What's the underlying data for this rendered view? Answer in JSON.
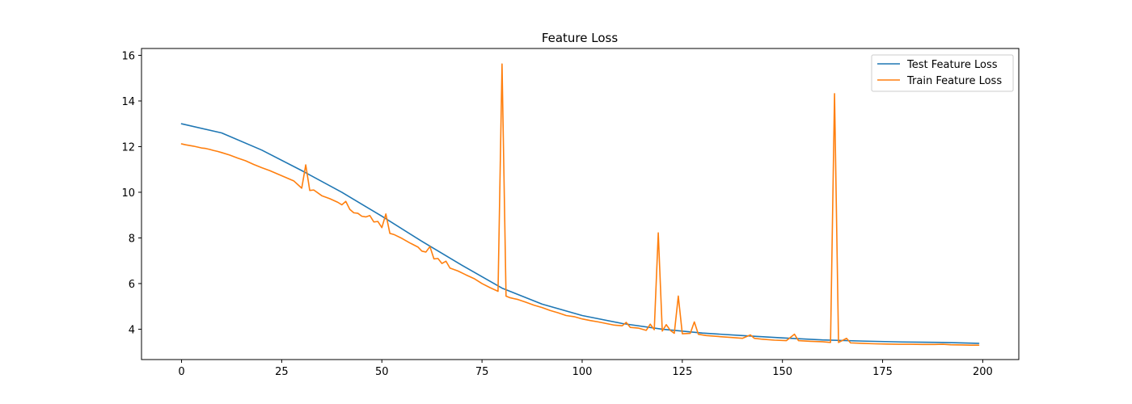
{
  "chart_data": {
    "type": "line",
    "title": "Feature Loss",
    "xlabel": "",
    "ylabel": "",
    "xlim": [
      -10,
      209
    ],
    "ylim": [
      2.67,
      16.3
    ],
    "x_ticks": [
      0,
      25,
      50,
      75,
      100,
      125,
      150,
      175,
      200
    ],
    "y_ticks": [
      4,
      6,
      8,
      10,
      12,
      14,
      16
    ],
    "grid": false,
    "legend_position": "top-right",
    "series": [
      {
        "name": "Test Feature Loss",
        "color": "#1f77b4",
        "points": [
          [
            0,
            13.0
          ],
          [
            10,
            12.6
          ],
          [
            20,
            11.85
          ],
          [
            30,
            10.95
          ],
          [
            40,
            10.0
          ],
          [
            50,
            8.95
          ],
          [
            60,
            7.85
          ],
          [
            70,
            6.8
          ],
          [
            80,
            5.8
          ],
          [
            90,
            5.1
          ],
          [
            100,
            4.6
          ],
          [
            110,
            4.25
          ],
          [
            120,
            4.0
          ],
          [
            130,
            3.83
          ],
          [
            140,
            3.72
          ],
          [
            150,
            3.62
          ],
          [
            160,
            3.53
          ],
          [
            170,
            3.48
          ],
          [
            180,
            3.44
          ],
          [
            190,
            3.42
          ],
          [
            199,
            3.38
          ]
        ]
      },
      {
        "name": "Train Feature Loss",
        "color": "#ff7f0e",
        "points": [
          [
            0,
            12.12
          ],
          [
            1,
            12.08
          ],
          [
            2,
            12.05
          ],
          [
            3,
            12.02
          ],
          [
            4,
            11.98
          ],
          [
            5,
            11.94
          ],
          [
            6,
            11.92
          ],
          [
            7,
            11.88
          ],
          [
            8,
            11.83
          ],
          [
            9,
            11.79
          ],
          [
            10,
            11.74
          ],
          [
            12,
            11.63
          ],
          [
            14,
            11.5
          ],
          [
            16,
            11.38
          ],
          [
            18,
            11.22
          ],
          [
            20,
            11.08
          ],
          [
            22,
            10.95
          ],
          [
            24,
            10.8
          ],
          [
            26,
            10.65
          ],
          [
            28,
            10.5
          ],
          [
            30,
            10.18
          ],
          [
            31,
            11.2
          ],
          [
            32,
            10.08
          ],
          [
            33,
            10.1
          ],
          [
            35,
            9.85
          ],
          [
            37,
            9.72
          ],
          [
            39,
            9.56
          ],
          [
            40,
            9.45
          ],
          [
            41,
            9.6
          ],
          [
            42,
            9.25
          ],
          [
            43,
            9.1
          ],
          [
            44,
            9.08
          ],
          [
            45,
            8.95
          ],
          [
            46,
            8.92
          ],
          [
            47,
            8.98
          ],
          [
            48,
            8.7
          ],
          [
            49,
            8.72
          ],
          [
            50,
            8.45
          ],
          [
            51,
            9.05
          ],
          [
            52,
            8.2
          ],
          [
            53,
            8.15
          ],
          [
            55,
            7.98
          ],
          [
            57,
            7.78
          ],
          [
            59,
            7.6
          ],
          [
            60,
            7.42
          ],
          [
            61,
            7.38
          ],
          [
            62,
            7.62
          ],
          [
            63,
            7.08
          ],
          [
            64,
            7.1
          ],
          [
            65,
            6.88
          ],
          [
            66,
            6.98
          ],
          [
            67,
            6.68
          ],
          [
            69,
            6.55
          ],
          [
            71,
            6.38
          ],
          [
            73,
            6.22
          ],
          [
            75,
            6.0
          ],
          [
            77,
            5.82
          ],
          [
            79,
            5.66
          ],
          [
            80,
            15.62
          ],
          [
            81,
            5.45
          ],
          [
            82,
            5.38
          ],
          [
            84,
            5.3
          ],
          [
            86,
            5.18
          ],
          [
            88,
            5.05
          ],
          [
            90,
            4.95
          ],
          [
            92,
            4.82
          ],
          [
            94,
            4.72
          ],
          [
            96,
            4.6
          ],
          [
            98,
            4.55
          ],
          [
            100,
            4.45
          ],
          [
            102,
            4.38
          ],
          [
            104,
            4.32
          ],
          [
            106,
            4.25
          ],
          [
            108,
            4.18
          ],
          [
            110,
            4.15
          ],
          [
            111,
            4.3
          ],
          [
            112,
            4.08
          ],
          [
            114,
            4.05
          ],
          [
            116,
            3.95
          ],
          [
            117,
            4.22
          ],
          [
            118,
            3.98
          ],
          [
            119,
            8.22
          ],
          [
            120,
            3.92
          ],
          [
            121,
            4.2
          ],
          [
            122,
            3.95
          ],
          [
            123,
            3.82
          ],
          [
            124,
            5.45
          ],
          [
            125,
            3.8
          ],
          [
            127,
            3.82
          ],
          [
            128,
            4.32
          ],
          [
            129,
            3.78
          ],
          [
            131,
            3.72
          ],
          [
            134,
            3.68
          ],
          [
            137,
            3.64
          ],
          [
            140,
            3.6
          ],
          [
            142,
            3.75
          ],
          [
            143,
            3.6
          ],
          [
            145,
            3.56
          ],
          [
            148,
            3.52
          ],
          [
            151,
            3.5
          ],
          [
            153,
            3.78
          ],
          [
            154,
            3.5
          ],
          [
            157,
            3.47
          ],
          [
            160,
            3.45
          ],
          [
            162,
            3.42
          ],
          [
            163,
            14.32
          ],
          [
            164,
            3.42
          ],
          [
            166,
            3.6
          ],
          [
            167,
            3.4
          ],
          [
            170,
            3.38
          ],
          [
            173,
            3.36
          ],
          [
            176,
            3.35
          ],
          [
            179,
            3.34
          ],
          [
            182,
            3.34
          ],
          [
            185,
            3.33
          ],
          [
            188,
            3.33
          ],
          [
            190,
            3.34
          ],
          [
            192,
            3.32
          ],
          [
            195,
            3.31
          ],
          [
            197,
            3.3
          ],
          [
            199,
            3.3
          ]
        ]
      }
    ]
  }
}
